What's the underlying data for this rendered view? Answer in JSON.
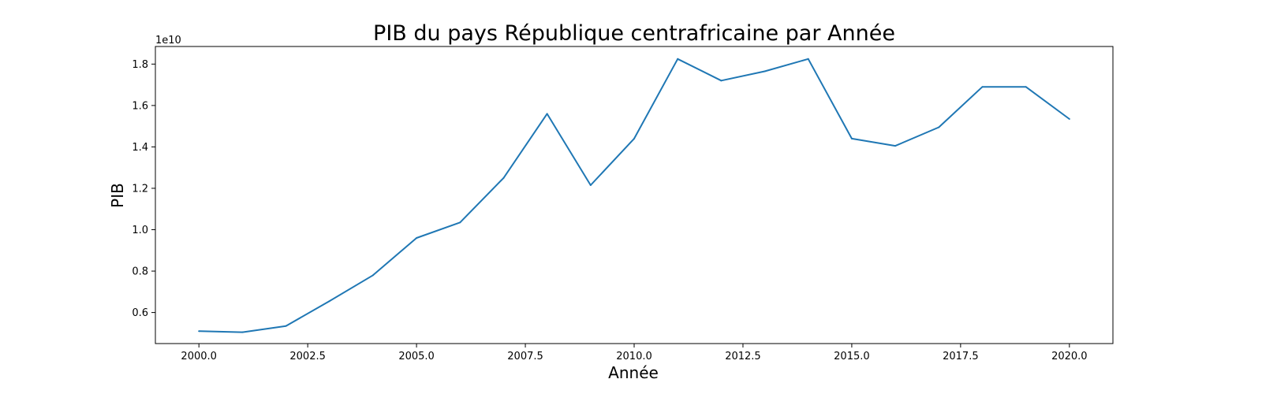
{
  "chart_data": {
    "type": "line",
    "title": "PIB du pays République centrafricaine par Année",
    "xlabel": "Année",
    "ylabel": "PIB",
    "y_offset_label": "1e10",
    "xlim": [
      1999.0,
      2021.0
    ],
    "ylim": [
      0.45,
      1.885
    ],
    "x_ticks": [
      2000.0,
      2002.5,
      2005.0,
      2007.5,
      2010.0,
      2012.5,
      2015.0,
      2017.5,
      2020.0
    ],
    "x_tick_labels": [
      "2000.0",
      "2002.5",
      "2005.0",
      "2007.5",
      "2010.0",
      "2012.5",
      "2015.0",
      "2017.5",
      "2020.0"
    ],
    "y_ticks": [
      0.6,
      0.8,
      1.0,
      1.2,
      1.4,
      1.6,
      1.8
    ],
    "y_tick_labels": [
      "0.6",
      "0.8",
      "1.0",
      "1.2",
      "1.4",
      "1.6",
      "1.8"
    ],
    "grid": false,
    "color": "#1f77b4",
    "series": [
      {
        "x": [
          2000,
          2001,
          2002,
          2003,
          2004,
          2005,
          2006,
          2007,
          2008,
          2009,
          2010,
          2011,
          2012,
          2013,
          2014,
          2015,
          2016,
          2017,
          2018,
          2019,
          2020
        ],
        "values": [
          0.51,
          0.505,
          0.535,
          0.655,
          0.78,
          0.96,
          1.035,
          1.25,
          1.56,
          1.215,
          1.44,
          1.825,
          1.72,
          1.765,
          1.825,
          1.44,
          1.405,
          1.495,
          1.69,
          1.69,
          1.535
        ]
      }
    ]
  }
}
